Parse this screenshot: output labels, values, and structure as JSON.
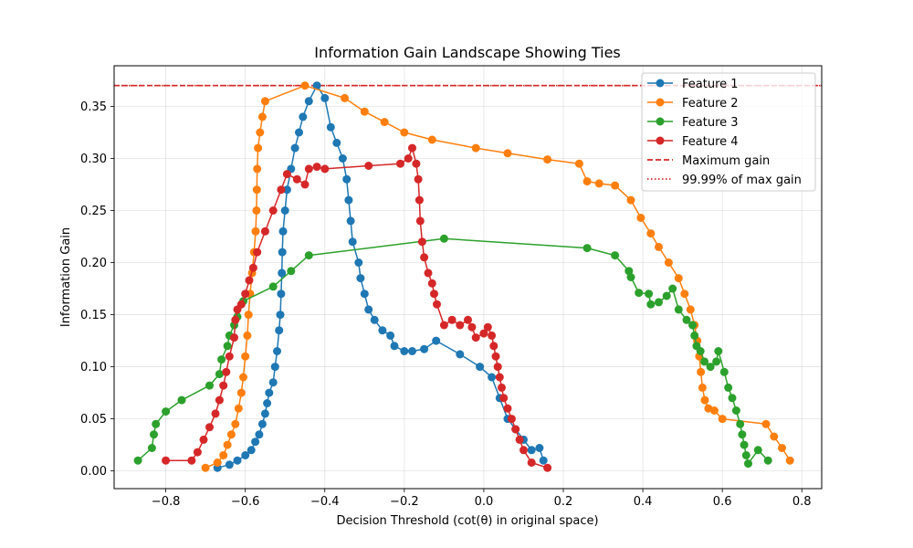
{
  "chart_data": {
    "type": "line",
    "title": "Information Gain Landscape Showing Ties",
    "xlabel": "Decision Threshold (cot(θ) in original space)",
    "ylabel": "Information Gain",
    "xlim": [
      -0.93,
      0.85
    ],
    "ylim": [
      -0.017,
      0.389
    ],
    "xticks": [
      -0.8,
      -0.6,
      -0.4,
      -0.2,
      0.0,
      0.2,
      0.4,
      0.6,
      0.8
    ],
    "xtick_labels": [
      "−0.8",
      "−0.6",
      "−0.4",
      "−0.2",
      "0.0",
      "0.2",
      "0.4",
      "0.6",
      "0.8"
    ],
    "yticks": [
      0.0,
      0.05,
      0.1,
      0.15,
      0.2,
      0.25,
      0.3,
      0.35
    ],
    "ytick_labels": [
      "0.00",
      "0.05",
      "0.10",
      "0.15",
      "0.20",
      "0.25",
      "0.30",
      "0.35"
    ],
    "grid": true,
    "legend_position": "top-right",
    "max_gain": 0.37,
    "max_gain_label": "Maximum gain",
    "near_max_label": "99.99% of max gain",
    "max_gain_color": "#d62728",
    "series": [
      {
        "name": "Feature 1",
        "color": "#1f77b4",
        "points": [
          [
            -0.67,
            0.003
          ],
          [
            -0.64,
            0.006
          ],
          [
            -0.62,
            0.01
          ],
          [
            -0.6,
            0.015
          ],
          [
            -0.585,
            0.02
          ],
          [
            -0.575,
            0.028
          ],
          [
            -0.565,
            0.035
          ],
          [
            -0.557,
            0.045
          ],
          [
            -0.55,
            0.055
          ],
          [
            -0.545,
            0.065
          ],
          [
            -0.54,
            0.075
          ],
          [
            -0.53,
            0.085
          ],
          [
            -0.525,
            0.1
          ],
          [
            -0.52,
            0.115
          ],
          [
            -0.515,
            0.135
          ],
          [
            -0.512,
            0.15
          ],
          [
            -0.51,
            0.17
          ],
          [
            -0.508,
            0.19
          ],
          [
            -0.507,
            0.21
          ],
          [
            -0.505,
            0.23
          ],
          [
            -0.5,
            0.25
          ],
          [
            -0.495,
            0.27
          ],
          [
            -0.485,
            0.29
          ],
          [
            -0.475,
            0.31
          ],
          [
            -0.465,
            0.325
          ],
          [
            -0.455,
            0.34
          ],
          [
            -0.44,
            0.355
          ],
          [
            -0.42,
            0.37
          ],
          [
            -0.4,
            0.358
          ],
          [
            -0.385,
            0.33
          ],
          [
            -0.37,
            0.315
          ],
          [
            -0.355,
            0.3
          ],
          [
            -0.345,
            0.28
          ],
          [
            -0.34,
            0.26
          ],
          [
            -0.335,
            0.24
          ],
          [
            -0.33,
            0.22
          ],
          [
            -0.315,
            0.2
          ],
          [
            -0.31,
            0.185
          ],
          [
            -0.3,
            0.17
          ],
          [
            -0.29,
            0.155
          ],
          [
            -0.275,
            0.145
          ],
          [
            -0.255,
            0.135
          ],
          [
            -0.235,
            0.13
          ],
          [
            -0.225,
            0.12
          ],
          [
            -0.2,
            0.115
          ],
          [
            -0.18,
            0.115
          ],
          [
            -0.15,
            0.117
          ],
          [
            -0.12,
            0.125
          ],
          [
            -0.06,
            0.112
          ],
          [
            -0.01,
            0.1
          ],
          [
            0.02,
            0.09
          ],
          [
            0.04,
            0.07
          ],
          [
            0.06,
            0.05
          ],
          [
            0.08,
            0.04
          ],
          [
            0.1,
            0.03
          ],
          [
            0.12,
            0.02
          ],
          [
            0.14,
            0.022
          ],
          [
            0.15,
            0.01
          ]
        ]
      },
      {
        "name": "Feature 2",
        "color": "#ff7f0e",
        "points": [
          [
            -0.7,
            0.003
          ],
          [
            -0.67,
            0.008
          ],
          [
            -0.655,
            0.015
          ],
          [
            -0.645,
            0.025
          ],
          [
            -0.635,
            0.035
          ],
          [
            -0.625,
            0.045
          ],
          [
            -0.617,
            0.06
          ],
          [
            -0.61,
            0.075
          ],
          [
            -0.605,
            0.09
          ],
          [
            -0.6,
            0.11
          ],
          [
            -0.595,
            0.13
          ],
          [
            -0.592,
            0.15
          ],
          [
            -0.588,
            0.17
          ],
          [
            -0.583,
            0.19
          ],
          [
            -0.578,
            0.21
          ],
          [
            -0.574,
            0.23
          ],
          [
            -0.572,
            0.25
          ],
          [
            -0.571,
            0.27
          ],
          [
            -0.57,
            0.29
          ],
          [
            -0.568,
            0.31
          ],
          [
            -0.563,
            0.325
          ],
          [
            -0.557,
            0.34
          ],
          [
            -0.55,
            0.355
          ],
          [
            -0.45,
            0.37
          ],
          [
            -0.35,
            0.358
          ],
          [
            -0.3,
            0.345
          ],
          [
            -0.25,
            0.335
          ],
          [
            -0.2,
            0.325
          ],
          [
            -0.13,
            0.318
          ],
          [
            -0.02,
            0.31
          ],
          [
            0.06,
            0.305
          ],
          [
            0.16,
            0.299
          ],
          [
            0.24,
            0.295
          ],
          [
            0.26,
            0.278
          ],
          [
            0.29,
            0.276
          ],
          [
            0.33,
            0.274
          ],
          [
            0.37,
            0.26
          ],
          [
            0.395,
            0.243
          ],
          [
            0.42,
            0.228
          ],
          [
            0.44,
            0.215
          ],
          [
            0.465,
            0.2
          ],
          [
            0.49,
            0.185
          ],
          [
            0.505,
            0.17
          ],
          [
            0.52,
            0.155
          ],
          [
            0.53,
            0.14
          ],
          [
            0.537,
            0.125
          ],
          [
            0.542,
            0.11
          ],
          [
            0.546,
            0.095
          ],
          [
            0.55,
            0.08
          ],
          [
            0.556,
            0.068
          ],
          [
            0.565,
            0.06
          ],
          [
            0.58,
            0.058
          ],
          [
            0.6,
            0.05
          ],
          [
            0.71,
            0.045
          ],
          [
            0.73,
            0.033
          ],
          [
            0.75,
            0.022
          ],
          [
            0.77,
            0.01
          ]
        ]
      },
      {
        "name": "Feature 3",
        "color": "#2ca02c",
        "points": [
          [
            -0.87,
            0.01
          ],
          [
            -0.835,
            0.022
          ],
          [
            -0.83,
            0.035
          ],
          [
            -0.825,
            0.045
          ],
          [
            -0.8,
            0.057
          ],
          [
            -0.76,
            0.068
          ],
          [
            -0.69,
            0.082
          ],
          [
            -0.665,
            0.093
          ],
          [
            -0.66,
            0.107
          ],
          [
            -0.645,
            0.12
          ],
          [
            -0.64,
            0.13
          ],
          [
            -0.628,
            0.14
          ],
          [
            -0.62,
            0.148
          ],
          [
            -0.605,
            0.163
          ],
          [
            -0.53,
            0.177
          ],
          [
            -0.485,
            0.192
          ],
          [
            -0.44,
            0.207
          ],
          [
            -0.1,
            0.223
          ],
          [
            0.26,
            0.214
          ],
          [
            0.33,
            0.207
          ],
          [
            0.365,
            0.192
          ],
          [
            0.37,
            0.186
          ],
          [
            0.39,
            0.171
          ],
          [
            0.415,
            0.17
          ],
          [
            0.42,
            0.16
          ],
          [
            0.44,
            0.162
          ],
          [
            0.46,
            0.168
          ],
          [
            0.475,
            0.175
          ],
          [
            0.49,
            0.155
          ],
          [
            0.51,
            0.145
          ],
          [
            0.525,
            0.14
          ],
          [
            0.53,
            0.13
          ],
          [
            0.535,
            0.12
          ],
          [
            0.545,
            0.115
          ],
          [
            0.555,
            0.105
          ],
          [
            0.57,
            0.1
          ],
          [
            0.585,
            0.105
          ],
          [
            0.59,
            0.115
          ],
          [
            0.605,
            0.095
          ],
          [
            0.615,
            0.08
          ],
          [
            0.625,
            0.07
          ],
          [
            0.635,
            0.058
          ],
          [
            0.645,
            0.045
          ],
          [
            0.65,
            0.035
          ],
          [
            0.655,
            0.025
          ],
          [
            0.66,
            0.015
          ],
          [
            0.665,
            0.007
          ],
          [
            0.69,
            0.02
          ],
          [
            0.715,
            0.01
          ]
        ]
      },
      {
        "name": "Feature 4",
        "color": "#d62728",
        "points": [
          [
            -0.8,
            0.01
          ],
          [
            -0.735,
            0.01
          ],
          [
            -0.72,
            0.018
          ],
          [
            -0.705,
            0.03
          ],
          [
            -0.69,
            0.042
          ],
          [
            -0.675,
            0.055
          ],
          [
            -0.665,
            0.068
          ],
          [
            -0.655,
            0.082
          ],
          [
            -0.648,
            0.095
          ],
          [
            -0.64,
            0.11
          ],
          [
            -0.628,
            0.128
          ],
          [
            -0.625,
            0.145
          ],
          [
            -0.62,
            0.155
          ],
          [
            -0.61,
            0.16
          ],
          [
            -0.6,
            0.17
          ],
          [
            -0.59,
            0.183
          ],
          [
            -0.58,
            0.195
          ],
          [
            -0.57,
            0.21
          ],
          [
            -0.55,
            0.23
          ],
          [
            -0.53,
            0.25
          ],
          [
            -0.51,
            0.27
          ],
          [
            -0.495,
            0.285
          ],
          [
            -0.47,
            0.28
          ],
          [
            -0.45,
            0.275
          ],
          [
            -0.44,
            0.29
          ],
          [
            -0.42,
            0.292
          ],
          [
            -0.4,
            0.29
          ],
          [
            -0.29,
            0.293
          ],
          [
            -0.21,
            0.295
          ],
          [
            -0.19,
            0.3
          ],
          [
            -0.18,
            0.31
          ],
          [
            -0.17,
            0.295
          ],
          [
            -0.165,
            0.28
          ],
          [
            -0.162,
            0.26
          ],
          [
            -0.16,
            0.24
          ],
          [
            -0.155,
            0.22
          ],
          [
            -0.15,
            0.205
          ],
          [
            -0.14,
            0.19
          ],
          [
            -0.13,
            0.18
          ],
          [
            -0.125,
            0.17
          ],
          [
            -0.118,
            0.16
          ],
          [
            -0.1,
            0.14
          ],
          [
            -0.08,
            0.145
          ],
          [
            -0.06,
            0.14
          ],
          [
            -0.04,
            0.145
          ],
          [
            -0.03,
            0.138
          ],
          [
            -0.02,
            0.128
          ],
          [
            0.0,
            0.132
          ],
          [
            0.01,
            0.138
          ],
          [
            0.02,
            0.13
          ],
          [
            0.025,
            0.12
          ],
          [
            0.03,
            0.11
          ],
          [
            0.035,
            0.1
          ],
          [
            0.04,
            0.09
          ],
          [
            0.045,
            0.08
          ],
          [
            0.05,
            0.07
          ],
          [
            0.06,
            0.06
          ],
          [
            0.07,
            0.05
          ],
          [
            0.08,
            0.04
          ],
          [
            0.09,
            0.03
          ],
          [
            0.1,
            0.02
          ],
          [
            0.12,
            0.008
          ],
          [
            0.16,
            0.003
          ]
        ]
      }
    ]
  }
}
